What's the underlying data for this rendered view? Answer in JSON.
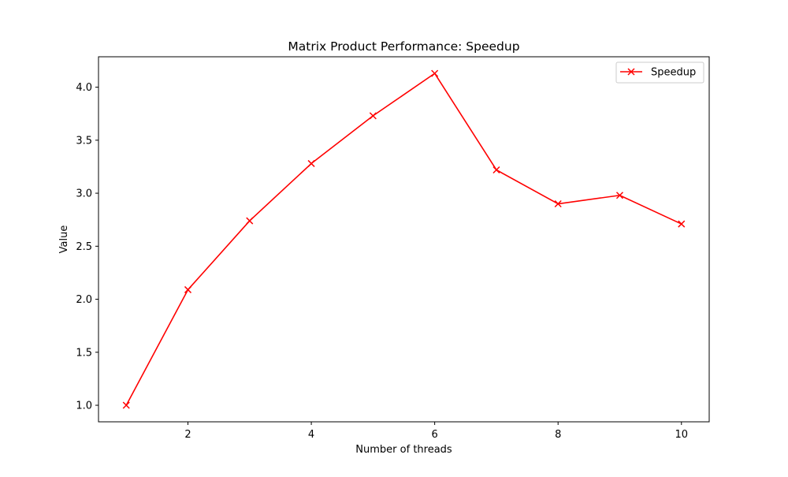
{
  "chart_data": {
    "type": "line",
    "title": "Matrix Product Performance: Speedup",
    "xlabel": "Number of threads",
    "ylabel": "Value",
    "x": [
      1,
      2,
      3,
      4,
      5,
      6,
      7,
      8,
      9,
      10
    ],
    "series": [
      {
        "name": "Speedup",
        "values": [
          1.0,
          2.09,
          2.74,
          3.28,
          3.73,
          4.13,
          3.22,
          2.9,
          2.98,
          2.71
        ],
        "color": "#ff0000",
        "marker": "x"
      }
    ],
    "xlim": [
      0.55,
      10.45
    ],
    "ylim": [
      0.844,
      4.287
    ],
    "xticks": [
      2,
      4,
      6,
      8,
      10
    ],
    "xtick_labels": [
      "2",
      "4",
      "6",
      "8",
      "10"
    ],
    "yticks": [
      1.0,
      1.5,
      2.0,
      2.5,
      3.0,
      3.5,
      4.0
    ],
    "ytick_labels": [
      "1.0",
      "1.5",
      "2.0",
      "2.5",
      "3.0",
      "3.5",
      "4.0"
    ],
    "grid": false,
    "legend_position": "upper right"
  }
}
